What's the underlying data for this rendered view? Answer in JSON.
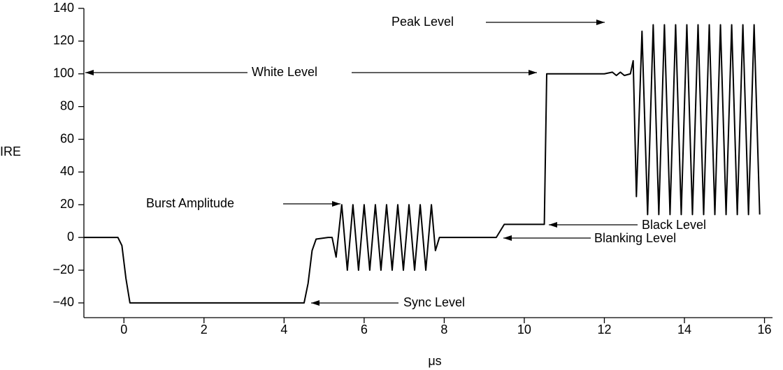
{
  "chart_data": {
    "type": "line",
    "xlabel": "μs",
    "ylabel": "IRE",
    "x": [
      -1,
      -0.15,
      -0.05,
      0.05,
      0.15,
      4.5,
      4.6,
      4.7,
      4.8,
      5.1,
      5.2,
      5.3,
      5.44,
      5.58,
      5.72,
      5.86,
      6.0,
      6.14,
      6.28,
      6.42,
      6.56,
      6.7,
      6.84,
      6.98,
      7.12,
      7.26,
      7.4,
      7.54,
      7.68,
      7.78,
      7.88,
      9.3,
      9.4,
      9.5,
      10.5,
      10.56,
      12.0,
      12.2,
      12.3,
      12.4,
      12.5,
      12.65,
      12.72,
      12.8,
      12.94,
      13.08,
      13.22,
      13.36,
      13.5,
      13.64,
      13.78,
      13.92,
      14.06,
      14.2,
      14.34,
      14.48,
      14.62,
      14.76,
      14.9,
      15.04,
      15.18,
      15.32,
      15.46,
      15.6,
      15.74,
      15.88
    ],
    "values": [
      0,
      0,
      -5,
      -25,
      -40,
      -40,
      -28,
      -8,
      -1,
      0,
      0,
      -12,
      20,
      -20,
      20,
      -20,
      20,
      -20,
      20,
      -20,
      20,
      -20,
      20,
      -20,
      20,
      -20,
      20,
      -20,
      20,
      -8,
      0,
      0,
      4,
      8,
      8,
      100,
      100,
      101,
      99,
      101,
      99,
      100,
      108,
      25,
      126,
      14,
      130,
      14,
      130,
      14,
      130,
      14,
      130,
      14,
      130,
      14,
      130,
      14,
      130,
      14,
      130,
      14,
      130,
      14,
      130,
      14
    ],
    "color": "#000000",
    "xlim": [
      -1,
      16.2
    ],
    "ylim": [
      -49,
      140
    ],
    "xticks": [
      0,
      2,
      4,
      6,
      8,
      10,
      12,
      14,
      16
    ],
    "yticks": [
      {
        "value": -40,
        "label": "−40"
      },
      {
        "value": -20,
        "label": "−20"
      },
      0,
      20,
      40,
      60,
      80,
      100,
      120,
      140
    ],
    "grid": false,
    "annotations": [
      "Peak Level",
      "White Level",
      "Burst Amplitude",
      "Black Level",
      "Blanking Level",
      "Sync Level"
    ]
  }
}
